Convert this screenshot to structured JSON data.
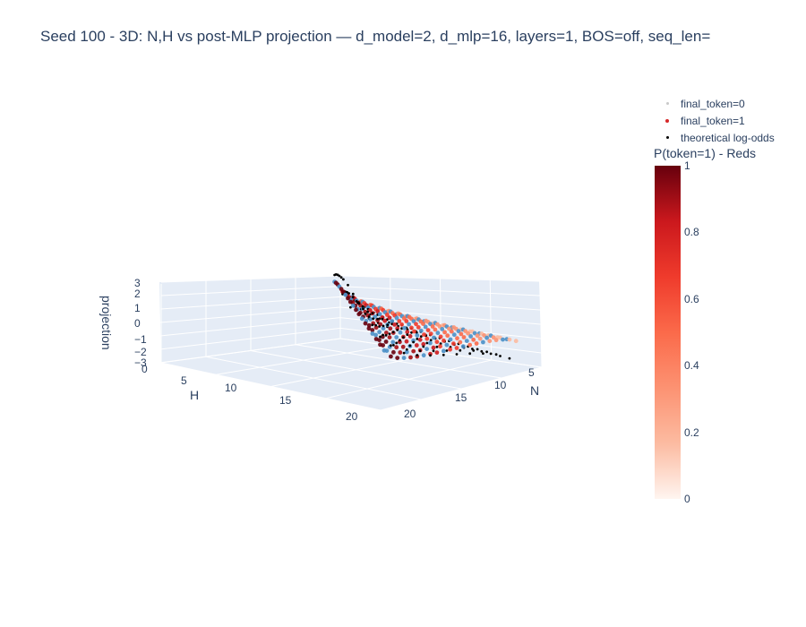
{
  "title": "Seed 100 - 3D: N,H vs post-MLP projection — d_model=2, d_mlp=16, layers=1, BOS=off, seq_len=",
  "legend": [
    {
      "label": "final_token=0",
      "color": "#c8c8c8"
    },
    {
      "label": "final_token=1",
      "color": "#d62728"
    },
    {
      "label": "theoretical log-odds",
      "color": "#000000"
    }
  ],
  "colorbar": {
    "title": "P(token=1) - Reds",
    "ticks": [
      "0",
      "0.2",
      "0.4",
      "0.6",
      "0.8",
      "1"
    ],
    "range": [
      0,
      1
    ]
  },
  "chart_data": {
    "type": "scatter",
    "title": "Seed 100 - 3D: N,H vs post-MLP projection — d_model=2, d_mlp=16, layers=1, BOS=off, seq_len=",
    "xlabel": "N",
    "ylabel": "H",
    "zlabel": "projection",
    "x_ticks": [
      "5",
      "10",
      "15",
      "20"
    ],
    "y_ticks": [
      "0",
      "5",
      "10",
      "15",
      "20"
    ],
    "z_ticks": [
      "−3",
      "−2",
      "−1",
      "0",
      "1",
      "2",
      "3"
    ],
    "xlim": [
      1,
      22
    ],
    "ylim": [
      0,
      22
    ],
    "zlim": [
      -3,
      3
    ],
    "series": [
      {
        "name": "final_token=0",
        "description_points": "blue-colored estimates"
      },
      {
        "name": "final_token=1",
        "description_points": "red-colored estimates"
      },
      {
        "name": "theoretical log-odds",
        "description_points": "black points"
      }
    ]
  }
}
